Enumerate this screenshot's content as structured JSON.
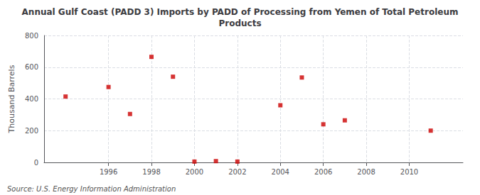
{
  "chart_data": {
    "type": "scatter",
    "title": "Annual Gulf Coast (PADD 3) Imports by PADD of Processing from Yemen of Total Petroleum\nProducts",
    "ylabel": "Thousand Barrels",
    "annotation": "Source: U.S. Energy Information Administration",
    "x": [
      1994,
      1996,
      1997,
      1998,
      1999,
      2000,
      2001,
      2002,
      2004,
      2005,
      2006,
      2007,
      2011
    ],
    "values": [
      415,
      475,
      305,
      665,
      540,
      5,
      8,
      5,
      360,
      535,
      240,
      265,
      200
    ],
    "color": "#cc0000",
    "marker": "square",
    "xlim": [
      1993.0,
      2012.5
    ],
    "xticks": [
      1996,
      1998,
      2000,
      2002,
      2004,
      2006,
      2008,
      2010
    ],
    "ylim": [
      0,
      800
    ],
    "yticks": [
      0,
      200,
      400,
      600,
      800
    ],
    "grid": true
  }
}
